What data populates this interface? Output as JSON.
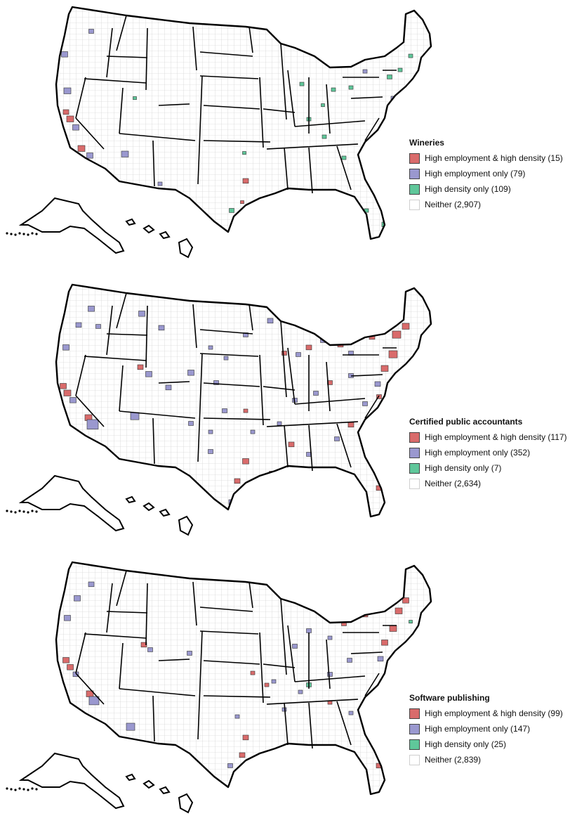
{
  "colors": {
    "both": "#d96b6b",
    "employment": "#9a98cf",
    "density": "#5fc79a",
    "neither": "#ffffff",
    "outline": "#000000",
    "county_line": "#c8c8c8"
  },
  "maps": [
    {
      "id": "wineries",
      "title": "Wineries",
      "legend": [
        {
          "key": "both",
          "label": "High employment & high density (15)"
        },
        {
          "key": "employment",
          "label": "High employment only (79)"
        },
        {
          "key": "density",
          "label": "High density only (109)"
        },
        {
          "key": "neither",
          "label": "Neither (2,907)"
        }
      ]
    },
    {
      "id": "cpa",
      "title": "Certified public accountants",
      "legend": [
        {
          "key": "both",
          "label": "High employment & high density (117)"
        },
        {
          "key": "employment",
          "label": "High employment only (352)"
        },
        {
          "key": "density",
          "label": "High density only (7)"
        },
        {
          "key": "neither",
          "label": "Neither (2,634)"
        }
      ]
    },
    {
      "id": "software",
      "title": "Software publishing",
      "legend": [
        {
          "key": "both",
          "label": "High employment & high density (99)"
        },
        {
          "key": "employment",
          "label": "High employment only (147)"
        },
        {
          "key": "density",
          "label": "High density only (25)"
        },
        {
          "key": "neither",
          "label": "Neither (2,839)"
        }
      ]
    }
  ]
}
